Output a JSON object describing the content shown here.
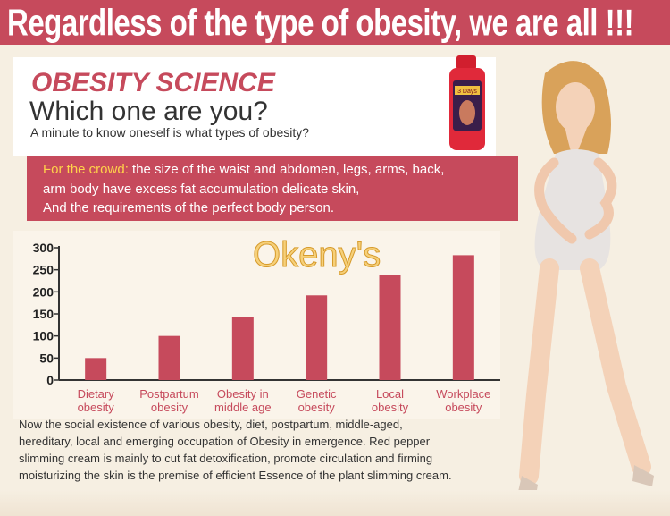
{
  "banner": {
    "title": "Regardless of the type of obesity, we are all !!!"
  },
  "header": {
    "heading": "OBESITY SCIENCE",
    "subheading": "Which one are you?",
    "tagline": "A minute to know oneself is what types of obesity?"
  },
  "crowd": {
    "label": "For the crowd:",
    "line1": " the size of the waist and abdomen, legs, arms, back,",
    "line2": "arm body have excess fat accumulation delicate skin,",
    "line3": "And the requirements of the perfect body person."
  },
  "watermark": "Okeny's",
  "product": {
    "box_text": "3 Days"
  },
  "description": {
    "line1": "Now the social existence of various obesity, diet, postpartum, middle-aged,",
    "line2": "hereditary, local and emerging occupation of Obesity in emergence. Red pepper",
    "line3": "slimming cream is mainly to cut fat detoxification, promote circulation and firming",
    "line4": "moisturizing the skin is the premise of efficient Essence of the plant slimming cream."
  },
  "colors": {
    "accent": "#c64a5c",
    "bar": "#c64a5c",
    "highlight": "#ffd24a"
  },
  "chart_data": {
    "type": "bar",
    "categories": [
      [
        "Dietary",
        "obesity"
      ],
      [
        "Postpartum",
        "obesity"
      ],
      [
        "Obesity in",
        "middle age"
      ],
      [
        "Genetic",
        "obesity"
      ],
      [
        "Local",
        "obesity"
      ],
      [
        "Workplace",
        "obesity"
      ]
    ],
    "values": [
      50,
      100,
      143,
      192,
      238,
      283
    ],
    "ylim": [
      0,
      300
    ],
    "yticks": [
      "0",
      "50",
      "100",
      "150",
      "200",
      "250",
      "300"
    ],
    "grid": false
  }
}
